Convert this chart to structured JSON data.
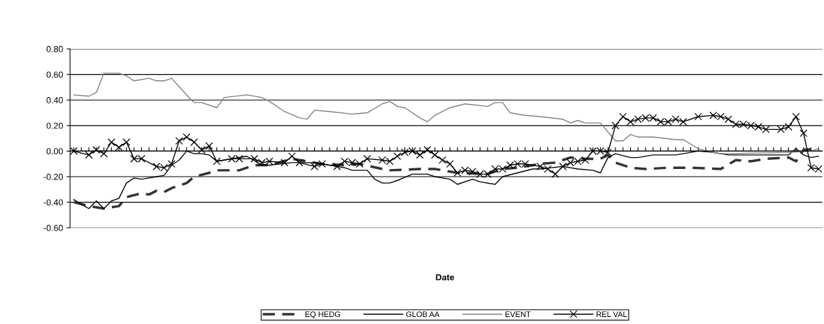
{
  "chart_data": {
    "type": "line",
    "xlabel": "Date",
    "categories": [
      null,
      null,
      null,
      null,
      null,
      null,
      null,
      null,
      null,
      null,
      null,
      null,
      null,
      null,
      null,
      null,
      null,
      null,
      null,
      null,
      null,
      null,
      null,
      null,
      null,
      null,
      null,
      null,
      null,
      null,
      null,
      null,
      null,
      null,
      null,
      null,
      null,
      null,
      null,
      null,
      null,
      null,
      null,
      null,
      null,
      null,
      null,
      null,
      null,
      null,
      null,
      null,
      null,
      null,
      null,
      null,
      null,
      null,
      null,
      null,
      null,
      null,
      null,
      null,
      null,
      null,
      null,
      null,
      null,
      null,
      null,
      null,
      null,
      null,
      null,
      null,
      null,
      null,
      null,
      null,
      null,
      null,
      null,
      null,
      null,
      null,
      null,
      null,
      null,
      null,
      null,
      null,
      null,
      null,
      null,
      null,
      null,
      null,
      null,
      null
    ],
    "ylim": [
      -0.6,
      0.8
    ],
    "yticks": [
      {
        "value": -0.6,
        "label": "-0.60"
      },
      {
        "value": -0.4,
        "label": "-0.40"
      },
      {
        "value": -0.2,
        "label": "-0.20"
      },
      {
        "value": 0,
        "label": "0.00"
      },
      {
        "value": 0.2,
        "label": "0.20"
      },
      {
        "value": 0.4,
        "label": "0.40"
      },
      {
        "value": 0.6,
        "label": "0.60"
      },
      {
        "value": 0.8,
        "label": "0.80"
      }
    ],
    "grid": "y",
    "legend": "bottom",
    "tick_labels": "y",
    "series": [
      {
        "name": "EQ HEDG",
        "color": "#333333",
        "line_style": "dashed",
        "marker": "none",
        "values": [
          -0.4,
          null,
          -0.43,
          null,
          -0.45,
          null,
          -0.43,
          -0.36,
          null,
          -0.33,
          -0.34,
          -0.31,
          -0.32,
          -0.29,
          null,
          -0.25,
          -0.2,
          null,
          -0.17,
          -0.15,
          null,
          null,
          -0.15,
          null,
          -0.11,
          null,
          -0.11,
          null,
          null,
          -0.06,
          null,
          null,
          null,
          -0.1,
          null,
          null,
          -0.11,
          null,
          -0.1,
          null,
          null,
          -0.14,
          -0.15,
          null,
          null,
          null,
          -0.14,
          null,
          -0.14,
          null,
          -0.16,
          -0.17,
          null,
          null,
          null,
          -0.18,
          null,
          -0.14,
          null,
          -0.13,
          null,
          null,
          -0.1,
          null,
          -0.09,
          null,
          -0.05,
          null,
          -0.06,
          null,
          -0.06,
          -0.03,
          -0.09,
          null,
          -0.13,
          null,
          -0.14,
          null,
          null,
          -0.13,
          null,
          null,
          -0.13,
          null,
          null,
          null,
          -0.14,
          null,
          -0.07,
          null,
          -0.08,
          null,
          -0.06,
          null,
          null,
          -0.05,
          -0.08,
          0.01,
          null,
          0.02
        ]
      },
      {
        "name": "GLOB AA",
        "color": "#000000",
        "line_style": "solid",
        "marker": "none",
        "values": [
          -0.38,
          null,
          -0.45,
          -0.39,
          -0.45,
          -0.39,
          -0.37,
          -0.25,
          -0.21,
          -0.22,
          null,
          -0.2,
          -0.19,
          -0.11,
          -0.07,
          0.0,
          -0.02,
          -0.02,
          -0.03,
          -0.08,
          null,
          null,
          null,
          -0.04,
          null,
          -0.11,
          -0.11,
          null,
          null,
          -0.09,
          null,
          null,
          -0.09,
          null,
          null,
          -0.12,
          -0.13,
          -0.15,
          null,
          -0.15,
          -0.22,
          -0.25,
          -0.25,
          -0.23,
          null,
          -0.18,
          null,
          -0.18,
          -0.2,
          null,
          -0.22,
          -0.26,
          null,
          -0.22,
          -0.24,
          null,
          -0.26,
          -0.2,
          null,
          -0.17,
          null,
          -0.14,
          -0.14,
          null,
          null,
          -0.12,
          null,
          -0.14,
          null,
          -0.15,
          -0.17,
          -0.05,
          -0.02,
          null,
          -0.05,
          -0.05,
          null,
          -0.03,
          null,
          null,
          -0.03,
          null,
          null,
          0.0,
          null,
          -0.01,
          null,
          -0.03,
          null,
          null,
          -0.03,
          null,
          -0.03,
          null,
          null,
          -0.03,
          0.02,
          -0.03,
          -0.05,
          -0.04
        ]
      },
      {
        "name": "EVENT",
        "color": "#808080",
        "line_style": "solid",
        "marker": "none",
        "values": [
          0.44,
          null,
          0.43,
          0.46,
          0.61,
          null,
          0.61,
          0.59,
          0.55,
          null,
          0.57,
          0.55,
          0.55,
          0.57,
          null,
          0.44,
          0.38,
          0.38,
          null,
          0.34,
          0.42,
          null,
          null,
          0.44,
          null,
          0.42,
          0.39,
          null,
          0.31,
          null,
          0.26,
          0.25,
          0.32,
          null,
          0.31,
          null,
          null,
          0.29,
          null,
          0.3,
          null,
          0.37,
          0.39,
          0.35,
          0.34,
          null,
          0.26,
          0.23,
          0.28,
          null,
          0.34,
          null,
          0.37,
          null,
          null,
          0.35,
          0.38,
          0.38,
          0.3,
          null,
          0.28,
          null,
          0.27,
          null,
          null,
          0.25,
          0.22,
          0.24,
          0.22,
          null,
          0.22,
          0.15,
          0.08,
          0.08,
          0.13,
          0.11,
          null,
          0.11,
          null,
          null,
          0.09,
          0.09,
          null,
          0.02,
          0.0,
          null,
          -0.02,
          null,
          null,
          null,
          null,
          null,
          null,
          null,
          null,
          -0.01,
          null,
          null,
          0.0,
          0.02
        ]
      },
      {
        "name": "REL VAL",
        "color": "#000000",
        "line_style": "solid",
        "marker": "cross",
        "values": [
          0.0,
          null,
          -0.03,
          0.01,
          -0.02,
          0.07,
          0.03,
          0.07,
          -0.06,
          -0.06,
          null,
          -0.12,
          -0.13,
          -0.1,
          0.08,
          0.11,
          0.07,
          0.01,
          0.04,
          -0.08,
          null,
          -0.06,
          -0.06,
          null,
          -0.06,
          -0.09,
          -0.08,
          null,
          -0.09,
          -0.04,
          -0.09,
          null,
          -0.12,
          -0.1,
          null,
          -0.12,
          -0.08,
          -0.09,
          -0.1,
          -0.06,
          null,
          -0.07,
          -0.08,
          -0.04,
          -0.01,
          0.0,
          -0.03,
          0.01,
          -0.03,
          -0.07,
          -0.1,
          -0.17,
          -0.15,
          -0.16,
          -0.18,
          -0.18,
          -0.14,
          -0.14,
          -0.11,
          -0.1,
          -0.1,
          null,
          -0.12,
          -0.14,
          -0.18,
          -0.12,
          -0.09,
          -0.08,
          -0.07,
          0.0,
          0.0,
          -0.01,
          0.2,
          0.27,
          0.23,
          0.25,
          0.26,
          0.26,
          0.23,
          0.23,
          0.25,
          0.23,
          null,
          0.27,
          null,
          0.28,
          0.27,
          0.25,
          0.21,
          0.21,
          0.2,
          0.19,
          0.17,
          null,
          0.17,
          0.19,
          0.27,
          0.14,
          -0.13,
          -0.14
        ]
      }
    ]
  }
}
